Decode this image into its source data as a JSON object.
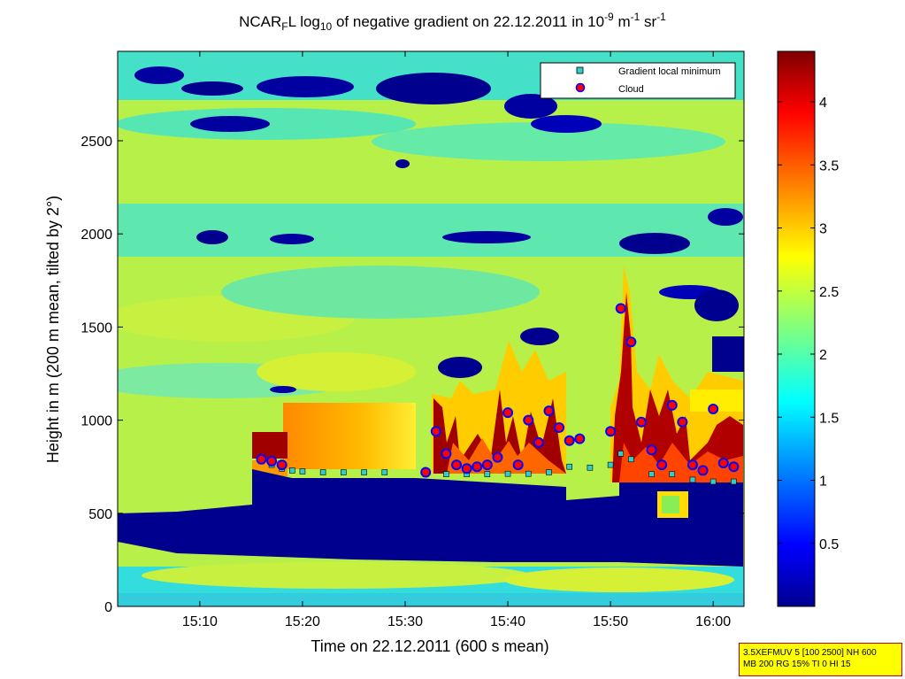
{
  "title": {
    "prefix": "NCAR",
    "sub1": "F",
    "mid1": "L log",
    "sub2": "10",
    "mid2": " of negative gradient on 22.12.2011 in 10",
    "sup1": "-9",
    "mid3": " m",
    "sup2": "-1",
    "mid4": " sr",
    "sup3": "-1"
  },
  "colors": {
    "background_low": "#00007f",
    "colormap": [
      "#00008f",
      "#0000ff",
      "#00ffff",
      "#ffff00",
      "#ff0000",
      "#7f0000"
    ],
    "legend_square": "#33cccc",
    "cloud_marker_fill": "#ff0000",
    "cloud_marker_edge": "#0000ff"
  },
  "chart_data": {
    "type": "heatmap",
    "title": "NCAR_F L log_10 of negative gradient on 22.12.2011 in 10^-9 m^-1 sr^-1",
    "xlabel": "Time on 22.12.2011 (600 s mean)",
    "ylabel": "Height in m (200 m mean, tilted by 2°)",
    "xlim": [
      "15:02",
      "16:03"
    ],
    "ylim": [
      0,
      2980
    ],
    "x_ticks": [
      "15:10",
      "15:20",
      "15:30",
      "15:40",
      "15:50",
      "16:00"
    ],
    "y_ticks": [
      "0",
      "500",
      "1000",
      "1500",
      "2000",
      "2500"
    ],
    "colorbar": {
      "range": [
        0,
        4.4
      ],
      "ticks": [
        "0.5",
        "1",
        "1.5",
        "2",
        "2.5",
        "3",
        "3.5",
        "4"
      ]
    },
    "legend": {
      "placement": "top-right",
      "entries": [
        "Gradient local minimum",
        "Cloud"
      ]
    },
    "series": [
      {
        "name": "Gradient local minimum",
        "x": [
          "15:16",
          "15:17",
          "15:18",
          "15:19",
          "15:20",
          "15:22",
          "15:24",
          "15:26",
          "15:28",
          "15:32",
          "15:34",
          "15:36",
          "15:38",
          "15:40",
          "15:42",
          "15:44",
          "15:46",
          "15:48",
          "15:50",
          "15:51",
          "15:52",
          "15:54",
          "15:56",
          "15:58",
          "16:00",
          "16:02"
        ],
        "y": [
          780,
          760,
          740,
          730,
          725,
          720,
          720,
          720,
          720,
          710,
          710,
          710,
          710,
          712,
          712,
          720,
          750,
          745,
          760,
          820,
          790,
          710,
          710,
          680,
          670,
          670
        ]
      },
      {
        "name": "Cloud",
        "x": [
          "15:16",
          "15:17",
          "15:18",
          "15:32",
          "15:33",
          "15:34",
          "15:35",
          "15:36",
          "15:37",
          "15:38",
          "15:39",
          "15:40",
          "15:41",
          "15:42",
          "15:43",
          "15:44",
          "15:45",
          "15:46",
          "15:47",
          "15:50",
          "15:51",
          "15:52",
          "15:53",
          "15:54",
          "15:55",
          "15:56",
          "15:57",
          "15:58",
          "15:59",
          "16:00",
          "16:01",
          "16:02"
        ],
        "y": [
          790,
          780,
          760,
          720,
          940,
          820,
          760,
          740,
          750,
          760,
          800,
          1040,
          760,
          1000,
          880,
          1050,
          960,
          890,
          900,
          940,
          1600,
          1420,
          990,
          840,
          760,
          1080,
          990,
          760,
          730,
          1060,
          770,
          750
        ]
      }
    ]
  },
  "info": {
    "line1": "3.5XEFMUV 5 [100 2500] NH 600",
    "line2": "MB 200 RG 15% TI 0 HI 15"
  }
}
